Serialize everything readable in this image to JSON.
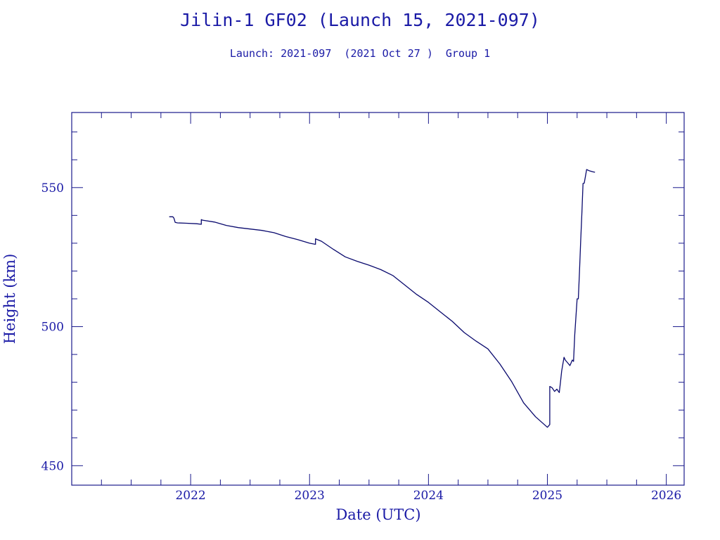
{
  "colors": {
    "axis": "#1a1a8c",
    "text": "#1a1aa6",
    "line": "#0a0a6e",
    "background": "#ffffff"
  },
  "chart_data": {
    "type": "line",
    "title": "Jilin-1 GF02 (Launch 15, 2021-097)",
    "subtitle": "Launch: 2021-097  (2021 Oct 27 )  Group 1",
    "xlabel": "Date (UTC)",
    "ylabel": "Height (km)",
    "xlim": [
      2021.0,
      2026.15
    ],
    "ylim": [
      443,
      577
    ],
    "x_ticks": [
      2022,
      2023,
      2024,
      2025,
      2026
    ],
    "x_tick_labels": [
      "2022",
      "2023",
      "2024",
      "2025",
      "2026"
    ],
    "y_ticks": [
      450,
      500,
      550
    ],
    "y_tick_labels": [
      "450",
      "500",
      "550"
    ],
    "x_minor_step": 0.25,
    "y_minor_step": 10,
    "grid": false,
    "legend": "none",
    "series": [
      {
        "x": [
          2021.82,
          2021.85,
          2021.86,
          2021.87,
          2021.89,
          2021.95,
          2022.05,
          2022.09,
          2022.09,
          2022.1,
          2022.2,
          2022.3,
          2022.4,
          2022.5,
          2022.6,
          2022.7,
          2022.8,
          2022.9,
          2023.0,
          2023.05,
          2023.05,
          2023.06,
          2023.1,
          2023.2,
          2023.3,
          2023.4,
          2023.5,
          2023.6,
          2023.7,
          2023.8,
          2023.9,
          2024.0,
          2024.1,
          2024.2,
          2024.3,
          2024.4,
          2024.5,
          2024.6,
          2024.7,
          2024.8,
          2024.9,
          2025.0,
          2025.02,
          2025.02,
          2025.04,
          2025.06,
          2025.08,
          2025.1,
          2025.11,
          2025.12,
          2025.13,
          2025.14,
          2025.15,
          2025.17,
          2025.19,
          2025.21,
          2025.22,
          2025.23,
          2025.25,
          2025.26,
          2025.27,
          2025.28,
          2025.29,
          2025.3,
          2025.31,
          2025.32,
          2025.33,
          2025.35,
          2025.38,
          2025.4
        ],
        "y": [
          539.5,
          539.5,
          539.0,
          537.5,
          537.3,
          537.2,
          537.0,
          536.8,
          538.5,
          538.3,
          537.6,
          536.4,
          535.6,
          535.1,
          534.6,
          533.8,
          532.4,
          531.3,
          530.0,
          529.6,
          531.6,
          531.4,
          530.7,
          527.8,
          525.1,
          523.5,
          522.1,
          520.5,
          518.4,
          515.0,
          511.6,
          508.7,
          505.3,
          501.9,
          497.9,
          494.8,
          492.0,
          486.6,
          480.2,
          472.6,
          467.6,
          463.8,
          464.8,
          478.5,
          478.0,
          476.7,
          477.5,
          476.3,
          480.0,
          484.0,
          486.5,
          489.0,
          488.0,
          487.0,
          486.0,
          488.0,
          487.5,
          497.0,
          510.0,
          510.0,
          520.0,
          531.0,
          541.0,
          551.5,
          551.6,
          554.0,
          556.5,
          556.1,
          555.7,
          555.5
        ]
      }
    ]
  }
}
